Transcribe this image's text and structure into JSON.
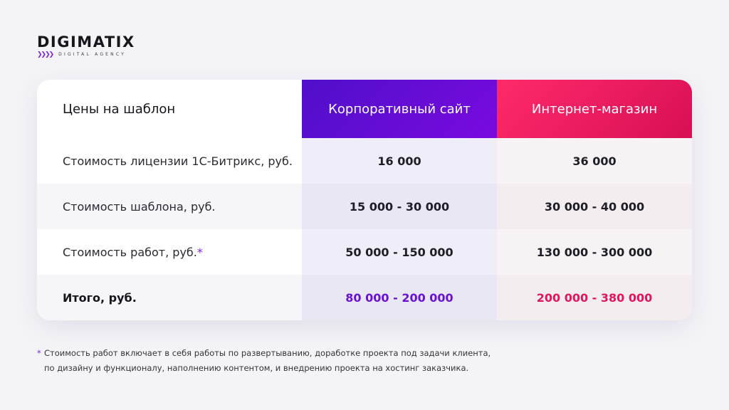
{
  "logo": {
    "name": "DIGIMATIX",
    "chevrons": "❯❯❯❯",
    "tagline": "DIGITAL AGENCY"
  },
  "table": {
    "header": {
      "label": "Цены на шаблон",
      "col1": "Корпоративный сайт",
      "col2": "Интернет-магазин"
    },
    "rows": [
      {
        "label": "Стоимость лицензии 1С-Битрикс, руб.",
        "asterisk": "",
        "col1": "16 000",
        "col2": "36 000"
      },
      {
        "label": "Стоимость шаблона, руб.",
        "asterisk": "",
        "col1": "15 000 - 30 000",
        "col2": "30 000 - 40 000"
      },
      {
        "label": "Стоимость работ, руб.",
        "asterisk": "*",
        "col1": "50 000 - 150 000",
        "col2": "130 000 - 300 000"
      },
      {
        "label": "Итого, руб.",
        "asterisk": "",
        "col1": "80 000 - 200 000",
        "col2": "200 000 - 380 000"
      }
    ]
  },
  "footnote": {
    "mark": "*",
    "line1": "Стоимость работ включает в себя работы по развертыванию, доработке проекта под задачи клиента,",
    "line2": "по дизайну и функционалу, наполнению контентом, и внедрению проекта на хостинг заказчика."
  },
  "colors": {
    "accent_purple": "#7a0ae0",
    "accent_pink": "#e2155f"
  }
}
